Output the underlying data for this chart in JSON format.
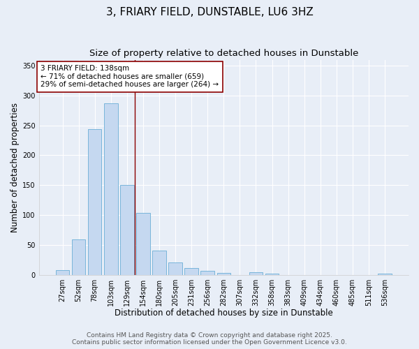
{
  "title": "3, FRIARY FIELD, DUNSTABLE, LU6 3HZ",
  "subtitle": "Size of property relative to detached houses in Dunstable",
  "xlabel": "Distribution of detached houses by size in Dunstable",
  "ylabel": "Number of detached properties",
  "bar_labels": [
    "27sqm",
    "52sqm",
    "78sqm",
    "103sqm",
    "129sqm",
    "154sqm",
    "180sqm",
    "205sqm",
    "231sqm",
    "256sqm",
    "282sqm",
    "307sqm",
    "332sqm",
    "358sqm",
    "383sqm",
    "409sqm",
    "434sqm",
    "460sqm",
    "485sqm",
    "511sqm",
    "536sqm"
  ],
  "bar_values": [
    8,
    59,
    244,
    287,
    150,
    103,
    40,
    20,
    11,
    6,
    3,
    0,
    4,
    2,
    0,
    0,
    0,
    0,
    0,
    0,
    2
  ],
  "bar_color": "#c5d8f0",
  "bar_edge_color": "#6aaed6",
  "vline_x_index": 4.5,
  "vline_color": "#8b0000",
  "annotation_text": "3 FRIARY FIELD: 138sqm\n← 71% of detached houses are smaller (659)\n29% of semi-detached houses are larger (264) →",
  "annotation_box_facecolor": "#ffffff",
  "annotation_box_edgecolor": "#8b0000",
  "ylim": [
    0,
    360
  ],
  "yticks": [
    0,
    50,
    100,
    150,
    200,
    250,
    300,
    350
  ],
  "bg_color": "#e8eef7",
  "plot_bg_color": "#e8eef7",
  "title_fontsize": 11,
  "subtitle_fontsize": 9.5,
  "axis_label_fontsize": 8.5,
  "tick_fontsize": 7,
  "annotation_fontsize": 7.5,
  "footer_fontsize": 6.5,
  "footer_line1": "Contains HM Land Registry data © Crown copyright and database right 2025.",
  "footer_line2": "Contains public sector information licensed under the Open Government Licence v3.0."
}
